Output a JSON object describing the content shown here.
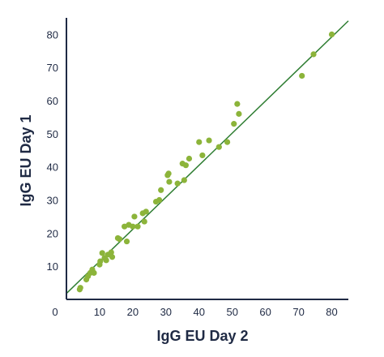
{
  "chart_data": {
    "type": "scatter",
    "title": "",
    "xlabel": "IgG EU Day 2",
    "ylabel": "IgG EU Day 1",
    "xlim": [
      0,
      85
    ],
    "ylim": [
      0,
      85
    ],
    "x_ticks": [
      0,
      10,
      20,
      30,
      40,
      50,
      60,
      70,
      80
    ],
    "y_ticks": [
      10,
      20,
      30,
      40,
      50,
      60,
      70,
      80
    ],
    "grid": false,
    "legend": "none",
    "colors": {
      "points": "#8cb43a",
      "line": "#2e7d32",
      "axis": "#1f2a44"
    },
    "reference_line": {
      "slope": 0.968,
      "intercept": 1.8
    },
    "points": [
      {
        "x": 4,
        "y": 3
      },
      {
        "x": 4.2,
        "y": 3.5
      },
      {
        "x": 6,
        "y": 6
      },
      {
        "x": 6.5,
        "y": 7
      },
      {
        "x": 7.2,
        "y": 8
      },
      {
        "x": 7.8,
        "y": 9
      },
      {
        "x": 8.3,
        "y": 8
      },
      {
        "x": 10,
        "y": 10.5
      },
      {
        "x": 10.2,
        "y": 11.5
      },
      {
        "x": 10.8,
        "y": 14
      },
      {
        "x": 11.5,
        "y": 12.5
      },
      {
        "x": 12,
        "y": 11.8
      },
      {
        "x": 12.5,
        "y": 13.5
      },
      {
        "x": 13.5,
        "y": 14.2
      },
      {
        "x": 13.8,
        "y": 12.8
      },
      {
        "x": 15.5,
        "y": 18.5
      },
      {
        "x": 16,
        "y": 18.2
      },
      {
        "x": 17.5,
        "y": 22
      },
      {
        "x": 18.2,
        "y": 17.5
      },
      {
        "x": 18.8,
        "y": 22.5
      },
      {
        "x": 20,
        "y": 22
      },
      {
        "x": 20.5,
        "y": 25
      },
      {
        "x": 21.5,
        "y": 22
      },
      {
        "x": 23,
        "y": 26
      },
      {
        "x": 23.5,
        "y": 23.5
      },
      {
        "x": 24,
        "y": 26.5
      },
      {
        "x": 27,
        "y": 29.5
      },
      {
        "x": 28,
        "y": 30
      },
      {
        "x": 28.5,
        "y": 33
      },
      {
        "x": 30.5,
        "y": 37.5
      },
      {
        "x": 30.8,
        "y": 38
      },
      {
        "x": 31,
        "y": 35.5
      },
      {
        "x": 33.5,
        "y": 35
      },
      {
        "x": 35,
        "y": 41
      },
      {
        "x": 35.5,
        "y": 36
      },
      {
        "x": 36,
        "y": 40.5
      },
      {
        "x": 37,
        "y": 42.5
      },
      {
        "x": 40,
        "y": 47.5
      },
      {
        "x": 41,
        "y": 43.5
      },
      {
        "x": 43,
        "y": 48
      },
      {
        "x": 46,
        "y": 46
      },
      {
        "x": 48.5,
        "y": 47.5
      },
      {
        "x": 50.5,
        "y": 53
      },
      {
        "x": 51.5,
        "y": 59
      },
      {
        "x": 52,
        "y": 56
      },
      {
        "x": 71,
        "y": 67.5
      },
      {
        "x": 74.5,
        "y": 74
      },
      {
        "x": 80,
        "y": 80
      }
    ]
  }
}
